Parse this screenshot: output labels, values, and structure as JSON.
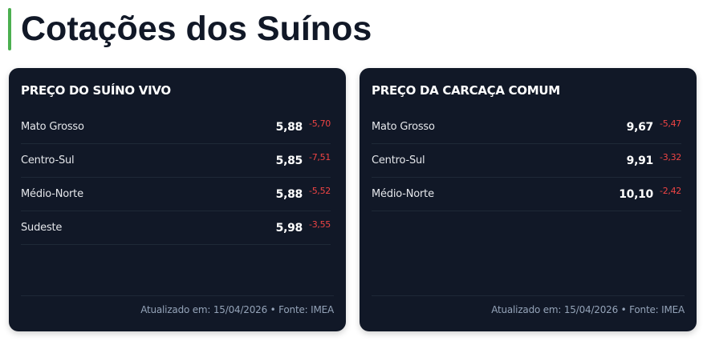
{
  "page": {
    "title": "Cotações dos Suínos",
    "accent_color": "#4caf50"
  },
  "cards": [
    {
      "title": "PREÇO DO SUÍNO VIVO",
      "rows": [
        {
          "region": "Mato Grosso",
          "price": "5,88",
          "change": "-5,70"
        },
        {
          "region": "Centro-Sul",
          "price": "5,85",
          "change": "-7,51"
        },
        {
          "region": "Médio-Norte",
          "price": "5,88",
          "change": "-5,52"
        },
        {
          "region": "Sudeste",
          "price": "5,98",
          "change": "-3,55"
        }
      ],
      "footer": "Atualizado em: 15/04/2026 • Fonte: IMEA"
    },
    {
      "title": "PREÇO DA CARCAÇA COMUM",
      "rows": [
        {
          "region": "Mato Grosso",
          "price": "9,67",
          "change": "-5,47"
        },
        {
          "region": "Centro-Sul",
          "price": "9,91",
          "change": "-3,32"
        },
        {
          "region": "Médio-Norte",
          "price": "10,10",
          "change": "-2,42"
        }
      ],
      "footer": "Atualizado em: 15/04/2026 • Fonte: IMEA"
    }
  ],
  "colors": {
    "card_bg": "#111827",
    "negative": "#ef4444"
  }
}
